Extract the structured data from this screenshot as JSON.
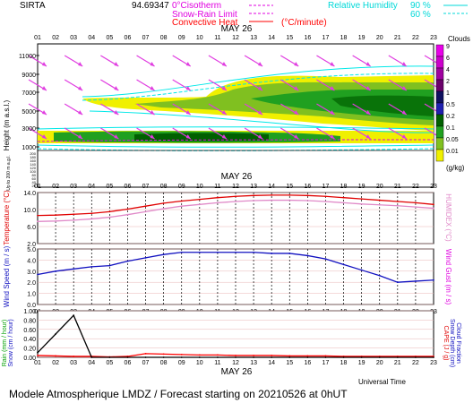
{
  "header": {
    "station": "SIRTA",
    "coord": "94.69347",
    "legend_isotherm": "0°Cisotherm",
    "legend_snow_rain": "Snow-Rain Limit",
    "legend_conv_heat": "Convective Heat",
    "legend_conv_unit": "(°C/minute)",
    "legend_rh": "Relative Humidity",
    "rh_90": "90 %",
    "rh_60": "60 %"
  },
  "hours": [
    "01",
    "02",
    "03",
    "04",
    "05",
    "06",
    "07",
    "08",
    "09",
    "10",
    "11",
    "12",
    "13",
    "14",
    "15",
    "16",
    "17",
    "18",
    "19",
    "20",
    "21",
    "22",
    "23"
  ],
  "date_label": "MAY 26",
  "colors": {
    "temp": "#e00000",
    "humidex": "#e089c8",
    "wind": "#1010c0",
    "isotherm": "#e000e0",
    "rh": "#00e8e8",
    "conv": "#ff0000",
    "arrow": "#e03ce0"
  },
  "clouds_legend": {
    "title": "Clouds",
    "unit": "(g/kg)",
    "levels": [
      "9",
      "6",
      "4",
      "2",
      "1",
      "0.5",
      "0.2",
      "0.1",
      "0.05",
      "0.01"
    ],
    "colors": [
      "#e800e8",
      "#cc00cc",
      "#a000a0",
      "#6a006a",
      "#101060",
      "#2020b0",
      "#006000",
      "#20a020",
      "#80c020",
      "#f0f000"
    ]
  },
  "panels": {
    "clouds": {
      "ylabel": "Height (m a.s.l.)",
      "ylabel_low": "Up to 200 m a.g.l.",
      "yticks": [
        "11000",
        "9000",
        "7000",
        "5000",
        "3000",
        "1000"
      ],
      "yticks_low": [
        "200",
        "180",
        "160",
        "140",
        "120",
        "100",
        "80",
        "60",
        "40",
        "20"
      ]
    },
    "temperature": {
      "ylabel": "Temperature (°C)",
      "ylabel_right": "HUMIDEX (°C)",
      "yticks": [
        "14.0",
        "10.0",
        "6.0",
        "2.0"
      ]
    },
    "wind": {
      "ylabel": "Wind Speed (m / s)",
      "ylabel_right": "Wind Gust (m / s)",
      "yticks": [
        "5.0",
        "4.0",
        "3.0",
        "2.0",
        "1.0",
        "0.0"
      ]
    },
    "precip": {
      "ylabel_left1": "Rain (mm / hour)",
      "ylabel_left2": "Snow (cm / hour)",
      "ylabel_right1": "CAPE (J / g)",
      "ylabel_right2": "Snow Depth (cm)",
      "ylabel_right3": "Cloud Fraction",
      "yticks": [
        "1.00",
        "0.80",
        "0.60",
        "0.40",
        "0.20",
        "0.00"
      ],
      "xlabel": "Universal Time"
    }
  },
  "footer": "Modele Atmospherique LMDZ / Forecast starting on 20210526 at 0hUT",
  "chart_data": [
    {
      "type": "line",
      "name": "Temperature",
      "x": [
        "01",
        "02",
        "03",
        "04",
        "05",
        "06",
        "07",
        "08",
        "09",
        "10",
        "11",
        "12",
        "13",
        "14",
        "15",
        "16",
        "17",
        "18",
        "19",
        "20",
        "21",
        "22",
        "23"
      ],
      "ylim": [
        2,
        14
      ],
      "series": [
        {
          "name": "Temperature",
          "values": [
            8.6,
            8.7,
            8.9,
            9.1,
            9.5,
            10.1,
            10.8,
            11.5,
            12.0,
            12.4,
            12.8,
            13.1,
            13.3,
            13.4,
            13.4,
            13.3,
            13.1,
            12.8,
            12.5,
            12.2,
            11.9,
            11.6,
            11.2
          ]
        },
        {
          "name": "Humidex",
          "values": [
            7.2,
            7.3,
            7.5,
            7.8,
            8.2,
            8.8,
            9.5,
            10.2,
            10.8,
            11.2,
            11.6,
            11.9,
            12.1,
            12.2,
            12.2,
            12.1,
            11.9,
            11.6,
            11.3,
            11.1,
            10.9,
            10.6,
            10.3
          ]
        }
      ]
    },
    {
      "type": "line",
      "name": "Wind Speed",
      "x": [
        "01",
        "02",
        "03",
        "04",
        "05",
        "06",
        "07",
        "08",
        "09",
        "10",
        "11",
        "12",
        "13",
        "14",
        "15",
        "16",
        "17",
        "18",
        "19",
        "20",
        "21",
        "22",
        "23"
      ],
      "ylim": [
        0,
        5
      ],
      "series": [
        {
          "name": "Wind Speed",
          "values": [
            2.7,
            3.0,
            3.2,
            3.4,
            3.5,
            3.9,
            4.2,
            4.5,
            4.7,
            4.7,
            4.7,
            4.7,
            4.7,
            4.6,
            4.6,
            4.4,
            4.1,
            3.6,
            3.1,
            2.6,
            2.0,
            2.1,
            2.2
          ]
        }
      ]
    },
    {
      "type": "line",
      "name": "Rain",
      "x": [
        "01",
        "02",
        "03",
        "04",
        "05",
        "06",
        "07",
        "08",
        "09",
        "10",
        "11",
        "12",
        "13",
        "14",
        "15",
        "16",
        "17",
        "18",
        "19",
        "20",
        "21",
        "22",
        "23"
      ],
      "ylim": [
        0,
        1
      ],
      "series": [
        {
          "name": "Rain",
          "values": [
            0.04,
            0.03,
            0.02,
            0.02,
            0.01,
            0.02,
            0.08,
            0.07,
            0.06,
            0.05,
            0.05,
            0.04,
            0.04,
            0.04,
            0.03,
            0.03,
            0.03,
            0.02,
            0.02,
            0.02,
            0.02,
            0.02,
            0.02
          ]
        },
        {
          "name": "CAPE",
          "values": [
            0.1,
            0.5,
            0.9,
            0.0,
            0.0,
            0.0,
            0.0,
            0.0,
            0.0,
            0.0,
            0.0,
            0.0,
            0.0,
            0.0,
            0.0,
            0.0,
            0.0,
            0.0,
            0.0,
            0.0,
            0.0,
            0.0,
            0.0
          ]
        }
      ]
    }
  ]
}
